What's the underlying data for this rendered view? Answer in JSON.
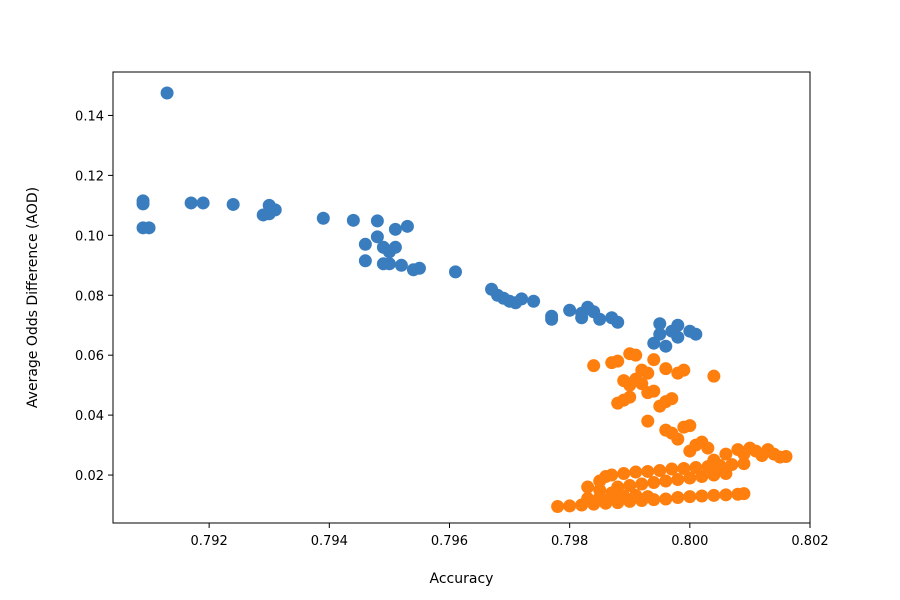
{
  "chart_data": {
    "type": "scatter",
    "title": "",
    "xlabel": "Accuracy",
    "ylabel": "Average Odds Difference (AOD)",
    "xlim": [
      0.7904,
      0.802
    ],
    "ylim": [
      0.004,
      0.1545
    ],
    "xticks": [
      0.792,
      0.794,
      0.796,
      0.798,
      0.8,
      0.802
    ],
    "xtick_labels": [
      "0.792",
      "0.794",
      "0.796",
      "0.798",
      "0.800",
      "0.802"
    ],
    "yticks": [
      0.02,
      0.04,
      0.06,
      0.08,
      0.1,
      0.12,
      0.14
    ],
    "ytick_labels": [
      "0.02",
      "0.04",
      "0.06",
      "0.08",
      "0.10",
      "0.12",
      "0.14"
    ],
    "grid": false,
    "legend": "none",
    "series": [
      {
        "color": "#3a7dbf",
        "points": [
          [
            0.7913,
            0.1475
          ],
          [
            0.7909,
            0.1115
          ],
          [
            0.7909,
            0.1105
          ],
          [
            0.7909,
            0.1025
          ],
          [
            0.791,
            0.1025
          ],
          [
            0.7917,
            0.1108
          ],
          [
            0.7919,
            0.1108
          ],
          [
            0.7924,
            0.1103
          ],
          [
            0.7929,
            0.1068
          ],
          [
            0.793,
            0.11
          ],
          [
            0.793,
            0.1072
          ],
          [
            0.7931,
            0.1085
          ],
          [
            0.7939,
            0.1057
          ],
          [
            0.7944,
            0.105
          ],
          [
            0.7946,
            0.097
          ],
          [
            0.7946,
            0.0915
          ],
          [
            0.7948,
            0.1048
          ],
          [
            0.7948,
            0.0995
          ],
          [
            0.7949,
            0.096
          ],
          [
            0.7949,
            0.0905
          ],
          [
            0.795,
            0.0945
          ],
          [
            0.795,
            0.0905
          ],
          [
            0.7951,
            0.102
          ],
          [
            0.7951,
            0.096
          ],
          [
            0.7952,
            0.09
          ],
          [
            0.7953,
            0.103
          ],
          [
            0.7954,
            0.0885
          ],
          [
            0.7955,
            0.089
          ],
          [
            0.7961,
            0.0878
          ],
          [
            0.7967,
            0.082
          ],
          [
            0.7968,
            0.08
          ],
          [
            0.7969,
            0.079
          ],
          [
            0.797,
            0.078
          ],
          [
            0.7971,
            0.0775
          ],
          [
            0.7972,
            0.0788
          ],
          [
            0.7974,
            0.078
          ],
          [
            0.7977,
            0.073
          ],
          [
            0.7977,
            0.072
          ],
          [
            0.798,
            0.075
          ],
          [
            0.7982,
            0.074
          ],
          [
            0.7982,
            0.0725
          ],
          [
            0.7983,
            0.076
          ],
          [
            0.7984,
            0.0745
          ],
          [
            0.7985,
            0.072
          ],
          [
            0.7987,
            0.0725
          ],
          [
            0.7988,
            0.071
          ],
          [
            0.7994,
            0.064
          ],
          [
            0.7995,
            0.0705
          ],
          [
            0.7995,
            0.067
          ],
          [
            0.7996,
            0.063
          ],
          [
            0.7997,
            0.068
          ],
          [
            0.7998,
            0.07
          ],
          [
            0.7998,
            0.066
          ],
          [
            0.8,
            0.068
          ],
          [
            0.8001,
            0.067
          ]
        ]
      },
      {
        "color": "#ff7f0e",
        "points": [
          [
            0.7984,
            0.0565
          ],
          [
            0.7987,
            0.0575
          ],
          [
            0.7988,
            0.058
          ],
          [
            0.799,
            0.0605
          ],
          [
            0.7991,
            0.06
          ],
          [
            0.7992,
            0.055
          ],
          [
            0.7993,
            0.054
          ],
          [
            0.7994,
            0.0585
          ],
          [
            0.7996,
            0.0555
          ],
          [
            0.7998,
            0.054
          ],
          [
            0.7999,
            0.055
          ],
          [
            0.8004,
            0.053
          ],
          [
            0.7989,
            0.0515
          ],
          [
            0.799,
            0.05
          ],
          [
            0.7991,
            0.052
          ],
          [
            0.7992,
            0.0505
          ],
          [
            0.7988,
            0.044
          ],
          [
            0.7989,
            0.045
          ],
          [
            0.799,
            0.046
          ],
          [
            0.7993,
            0.0475
          ],
          [
            0.7994,
            0.048
          ],
          [
            0.7995,
            0.043
          ],
          [
            0.7996,
            0.0445
          ],
          [
            0.7997,
            0.0455
          ],
          [
            0.7993,
            0.038
          ],
          [
            0.7996,
            0.035
          ],
          [
            0.7997,
            0.034
          ],
          [
            0.7998,
            0.032
          ],
          [
            0.7999,
            0.036
          ],
          [
            0.8,
            0.0365
          ],
          [
            0.8,
            0.028
          ],
          [
            0.8001,
            0.03
          ],
          [
            0.8002,
            0.031
          ],
          [
            0.8003,
            0.029
          ],
          [
            0.8004,
            0.025
          ],
          [
            0.8006,
            0.027
          ],
          [
            0.8008,
            0.0285
          ],
          [
            0.8009,
            0.027
          ],
          [
            0.801,
            0.029
          ],
          [
            0.8011,
            0.028
          ],
          [
            0.8012,
            0.0265
          ],
          [
            0.8013,
            0.0285
          ],
          [
            0.8014,
            0.027
          ],
          [
            0.8015,
            0.026
          ],
          [
            0.8016,
            0.0262
          ],
          [
            0.7985,
            0.018
          ],
          [
            0.7986,
            0.0195
          ],
          [
            0.7987,
            0.02
          ],
          [
            0.7989,
            0.0205
          ],
          [
            0.7991,
            0.021
          ],
          [
            0.7993,
            0.0212
          ],
          [
            0.7995,
            0.0215
          ],
          [
            0.7997,
            0.022
          ],
          [
            0.7999,
            0.0222
          ],
          [
            0.8001,
            0.0225
          ],
          [
            0.8003,
            0.0228
          ],
          [
            0.8005,
            0.0232
          ],
          [
            0.8007,
            0.0235
          ],
          [
            0.8009,
            0.0238
          ],
          [
            0.7983,
            0.016
          ],
          [
            0.7985,
            0.015
          ],
          [
            0.7987,
            0.014
          ],
          [
            0.7988,
            0.016
          ],
          [
            0.799,
            0.0165
          ],
          [
            0.7992,
            0.017
          ],
          [
            0.7994,
            0.0175
          ],
          [
            0.7996,
            0.018
          ],
          [
            0.7998,
            0.0185
          ],
          [
            0.8,
            0.019
          ],
          [
            0.8002,
            0.0195
          ],
          [
            0.8004,
            0.02
          ],
          [
            0.8006,
            0.0205
          ],
          [
            0.7978,
            0.0095
          ],
          [
            0.798,
            0.0097
          ],
          [
            0.7982,
            0.01
          ],
          [
            0.7984,
            0.0103
          ],
          [
            0.7986,
            0.0106
          ],
          [
            0.7988,
            0.0108
          ],
          [
            0.799,
            0.0112
          ],
          [
            0.7992,
            0.0115
          ],
          [
            0.7994,
            0.0118
          ],
          [
            0.7996,
            0.012
          ],
          [
            0.7998,
            0.0125
          ],
          [
            0.8,
            0.0128
          ],
          [
            0.8002,
            0.013
          ],
          [
            0.8004,
            0.0132
          ],
          [
            0.8006,
            0.0134
          ],
          [
            0.8008,
            0.0136
          ],
          [
            0.8009,
            0.0138
          ],
          [
            0.7983,
            0.0122
          ],
          [
            0.7985,
            0.0125
          ],
          [
            0.7987,
            0.0128
          ],
          [
            0.7989,
            0.013
          ],
          [
            0.7991,
            0.0132
          ],
          [
            0.7993,
            0.0128
          ]
        ]
      }
    ]
  }
}
